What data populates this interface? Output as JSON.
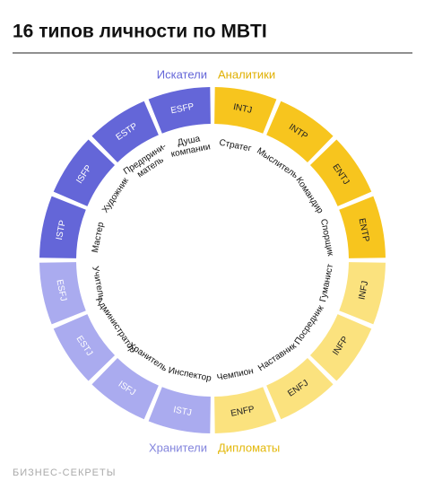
{
  "header": {
    "title": "16 типов личности по MBTI"
  },
  "groups": [
    {
      "name": "Аналитики",
      "color": "#f7c51e",
      "label_color": "#e0b000",
      "text_color": "#222"
    },
    {
      "name": "Дипломаты",
      "color": "#fbe27e",
      "label_color": "#e3b80a",
      "text_color": "#222"
    },
    {
      "name": "Хранители",
      "color": "#aaabef",
      "label_color": "#8385dd",
      "text_color": "#ffffff"
    },
    {
      "name": "Искатели",
      "color": "#6466d8",
      "label_color": "#6466d8",
      "text_color": "#ffffff"
    }
  ],
  "types": [
    {
      "name": "INTJ",
      "role": [
        "Стратег"
      ],
      "group": 0
    },
    {
      "name": "INTP",
      "role": [
        "Мыслитель"
      ],
      "group": 0
    },
    {
      "name": "ENTJ",
      "role": [
        "Командир"
      ],
      "group": 0
    },
    {
      "name": "ENTP",
      "role": [
        "Спорщик"
      ],
      "group": 0
    },
    {
      "name": "INFJ",
      "role": [
        "Гуманист"
      ],
      "group": 1
    },
    {
      "name": "INFP",
      "role": [
        "Посредник"
      ],
      "group": 1
    },
    {
      "name": "ENFJ",
      "role": [
        "Наставник"
      ],
      "group": 1
    },
    {
      "name": "ENFP",
      "role": [
        "Чемпион"
      ],
      "group": 1
    },
    {
      "name": "ISTJ",
      "role": [
        "Инспектор"
      ],
      "group": 2
    },
    {
      "name": "ISFJ",
      "role": [
        "Хранитель"
      ],
      "group": 2
    },
    {
      "name": "ESTJ",
      "role": [
        "Администратор"
      ],
      "group": 2
    },
    {
      "name": "ESFJ",
      "role": [
        "Учитель"
      ],
      "group": 2
    },
    {
      "name": "ISTP",
      "role": [
        "Мастер"
      ],
      "group": 3
    },
    {
      "name": "ISFP",
      "role": [
        "Художник"
      ],
      "group": 3
    },
    {
      "name": "ESTP",
      "role": [
        "Предприни-",
        "матель"
      ],
      "group": 3
    },
    {
      "name": "ESFP",
      "role": [
        "Душа",
        "компании"
      ],
      "group": 3
    }
  ],
  "footer": {
    "brand": "БИЗНЕС-СЕКРЕТЫ"
  }
}
